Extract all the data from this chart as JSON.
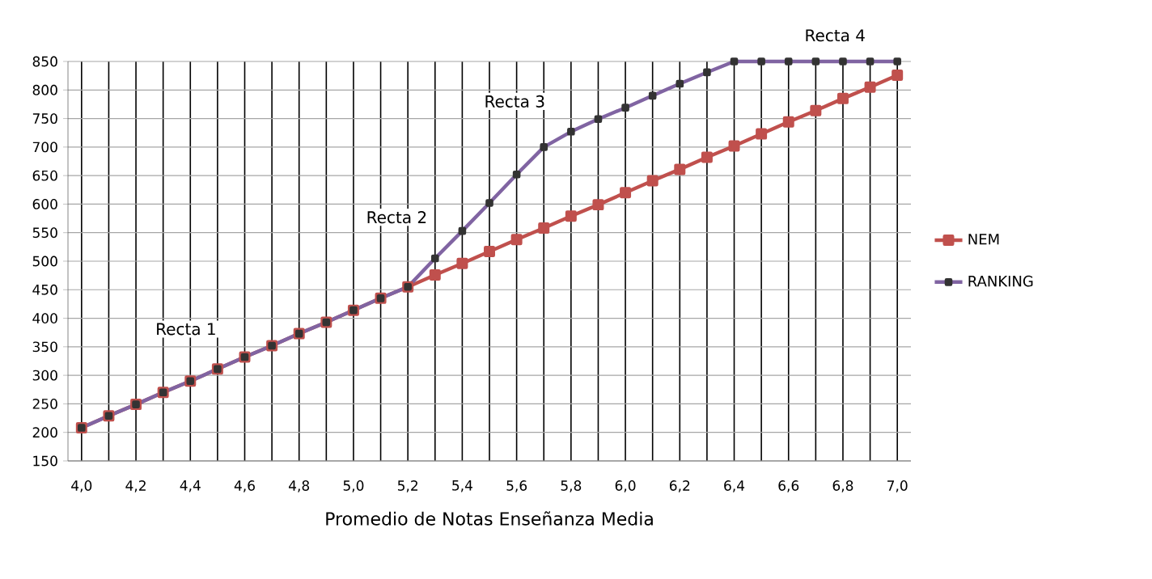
{
  "chart_data": {
    "type": "line",
    "xlabel": "Promedio de Notas Enseñanza Media",
    "categories": [
      "4,0",
      null,
      "4,2",
      null,
      "4,4",
      null,
      "4,6",
      null,
      "4,8",
      null,
      "5,0",
      null,
      "5,2",
      null,
      "5,4",
      null,
      "5,6",
      null,
      "5,8",
      null,
      "6,0",
      null,
      "6,2",
      null,
      "6,4",
      null,
      "6,6",
      null,
      "6,8",
      null,
      "7,0"
    ],
    "series": [
      {
        "name": "NEM",
        "color": "#c0504d",
        "marker": "square",
        "values": [
          208,
          229,
          249,
          270,
          290,
          311,
          332,
          352,
          373,
          393,
          414,
          435,
          455,
          476,
          496,
          517,
          538,
          558,
          579,
          599,
          620,
          641,
          661,
          682,
          702,
          723,
          744,
          764,
          785,
          805,
          826
        ]
      },
      {
        "name": "RANKING",
        "color": "#8064a2",
        "marker": "square",
        "values": [
          208,
          229,
          249,
          270,
          290,
          311,
          332,
          352,
          373,
          393,
          414,
          435,
          455,
          505,
          553,
          602,
          652,
          700,
          727,
          749,
          769,
          790,
          811,
          831,
          850,
          850,
          850,
          850,
          850,
          850,
          850
        ]
      }
    ],
    "ylim": [
      150,
      850
    ],
    "yticks": [
      150,
      200,
      250,
      300,
      350,
      400,
      450,
      500,
      550,
      600,
      650,
      700,
      750,
      800,
      850
    ],
    "grid": true,
    "legend": "right",
    "line_style": "solid",
    "annotations": [
      "Recta 1",
      "Recta 2",
      "Recta 3",
      "Recta 4"
    ]
  }
}
